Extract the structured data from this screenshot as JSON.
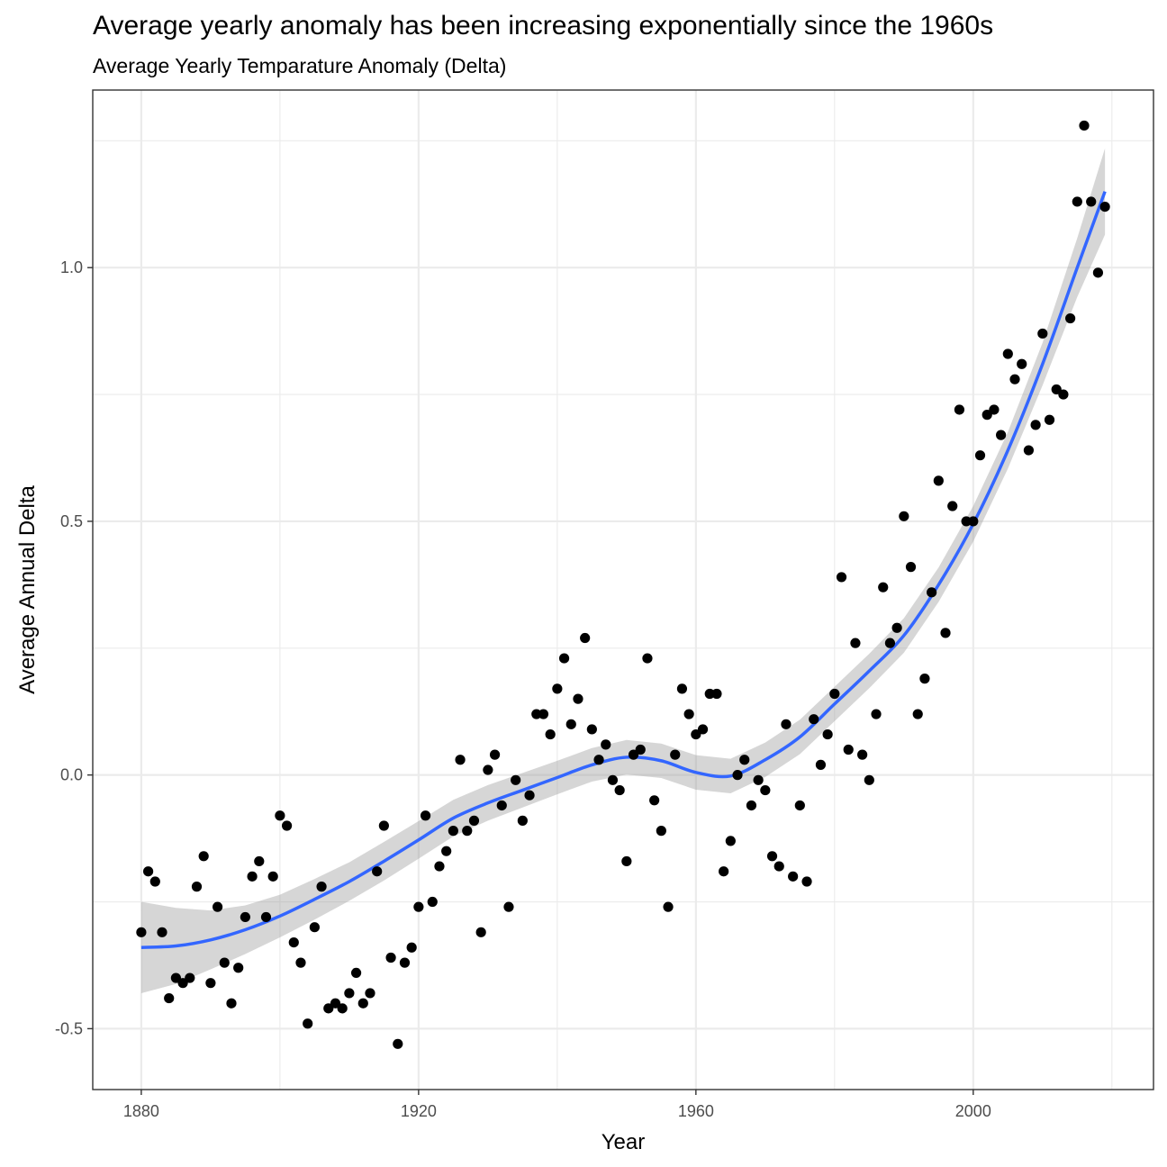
{
  "chart_data": {
    "type": "scatter",
    "title": "Average yearly anomaly has been increasing exponentially since the 1960s",
    "subtitle": "Average Yearly Temparature Anomaly (Delta)",
    "xlabel": "Year",
    "ylabel": "Average Annual Delta",
    "xlim": [
      1873,
      2026
    ],
    "ylim": [
      -0.62,
      1.35
    ],
    "x_ticks": [
      1880,
      1920,
      1960,
      2000
    ],
    "x_tick_labels": [
      "1880",
      "1920",
      "1960",
      "2000"
    ],
    "y_ticks": [
      -0.5,
      0.0,
      0.5,
      1.0
    ],
    "y_tick_labels": [
      "-0.5",
      "0.0",
      "0.5",
      "1.0"
    ],
    "grid": true,
    "colors": {
      "points": "#000000",
      "smooth": "#3366ff",
      "ribbon": "#999999",
      "grid": "#ebebeb",
      "border": "#333333"
    },
    "points": {
      "x": [
        1880,
        1881,
        1882,
        1883,
        1884,
        1885,
        1886,
        1887,
        1888,
        1889,
        1890,
        1891,
        1892,
        1893,
        1894,
        1895,
        1896,
        1897,
        1898,
        1899,
        1900,
        1901,
        1902,
        1903,
        1904,
        1905,
        1906,
        1907,
        1908,
        1909,
        1910,
        1911,
        1912,
        1913,
        1914,
        1915,
        1916,
        1917,
        1918,
        1919,
        1920,
        1921,
        1922,
        1923,
        1924,
        1925,
        1926,
        1927,
        1928,
        1929,
        1930,
        1931,
        1932,
        1933,
        1934,
        1935,
        1936,
        1937,
        1938,
        1939,
        1940,
        1941,
        1942,
        1943,
        1944,
        1945,
        1946,
        1947,
        1948,
        1949,
        1950,
        1951,
        1952,
        1953,
        1954,
        1955,
        1956,
        1957,
        1958,
        1959,
        1960,
        1961,
        1962,
        1963,
        1964,
        1965,
        1966,
        1967,
        1968,
        1969,
        1970,
        1971,
        1972,
        1973,
        1974,
        1975,
        1976,
        1977,
        1978,
        1979,
        1980,
        1981,
        1982,
        1983,
        1984,
        1985,
        1986,
        1987,
        1988,
        1989,
        1990,
        1991,
        1992,
        1993,
        1994,
        1995,
        1996,
        1997,
        1998,
        1999,
        2000,
        2001,
        2002,
        2003,
        2004,
        2005,
        2006,
        2007,
        2008,
        2009,
        2010,
        2011,
        2012,
        2013,
        2014,
        2015,
        2016,
        2017,
        2018,
        2019
      ],
      "y": [
        -0.31,
        -0.19,
        -0.21,
        -0.31,
        -0.44,
        -0.4,
        -0.41,
        -0.4,
        -0.22,
        -0.16,
        -0.41,
        -0.26,
        -0.37,
        -0.45,
        -0.38,
        -0.28,
        -0.2,
        -0.17,
        -0.28,
        -0.2,
        -0.08,
        -0.1,
        -0.33,
        -0.37,
        -0.49,
        -0.3,
        -0.22,
        -0.46,
        -0.45,
        -0.46,
        -0.43,
        -0.39,
        -0.45,
        -0.43,
        -0.19,
        -0.1,
        -0.36,
        -0.53,
        -0.37,
        -0.34,
        -0.26,
        -0.08,
        -0.25,
        -0.18,
        -0.15,
        -0.11,
        0.03,
        -0.11,
        -0.09,
        -0.31,
        0.01,
        0.04,
        -0.06,
        -0.26,
        -0.01,
        -0.09,
        -0.04,
        0.12,
        0.12,
        0.08,
        0.17,
        0.23,
        0.1,
        0.15,
        0.27,
        0.09,
        0.03,
        0.06,
        -0.01,
        -0.03,
        -0.17,
        0.04,
        0.05,
        0.23,
        -0.05,
        -0.11,
        -0.26,
        0.04,
        0.17,
        0.12,
        0.08,
        0.09,
        0.16,
        0.16,
        -0.19,
        -0.13,
        0.0,
        0.03,
        -0.06,
        -0.01,
        -0.03,
        -0.16,
        -0.18,
        0.1,
        -0.2,
        -0.06,
        -0.21,
        0.11,
        0.02,
        0.08,
        0.16,
        0.39,
        0.05,
        0.26,
        0.04,
        -0.01,
        0.12,
        0.37,
        0.26,
        0.29,
        0.51,
        0.41,
        0.12,
        0.19,
        0.36,
        0.58,
        0.28,
        0.53,
        0.72,
        0.5,
        0.5,
        0.63,
        0.71,
        0.72,
        0.67,
        0.83,
        0.78,
        0.81,
        0.64,
        0.69,
        0.87,
        0.7,
        0.76,
        0.75,
        0.9,
        1.13,
        1.28,
        1.13,
        0.99,
        1.12
      ]
    },
    "smooth": {
      "method": "loess",
      "x": [
        1880,
        1885,
        1890,
        1895,
        1900,
        1905,
        1910,
        1915,
        1920,
        1925,
        1930,
        1935,
        1940,
        1945,
        1950,
        1955,
        1960,
        1965,
        1970,
        1975,
        1980,
        1985,
        1990,
        1995,
        2000,
        2005,
        2010,
        2015,
        2019
      ],
      "y": [
        -0.34,
        -0.337,
        -0.325,
        -0.305,
        -0.278,
        -0.245,
        -0.21,
        -0.17,
        -0.128,
        -0.085,
        -0.055,
        -0.03,
        -0.005,
        0.02,
        0.035,
        0.028,
        0.005,
        -0.002,
        0.03,
        0.075,
        0.14,
        0.205,
        0.275,
        0.375,
        0.495,
        0.64,
        0.81,
        1.0,
        1.15
      ],
      "se_band": [
        0.09,
        0.075,
        0.058,
        0.048,
        0.042,
        0.04,
        0.038,
        0.038,
        0.037,
        0.036,
        0.035,
        0.034,
        0.033,
        0.033,
        0.034,
        0.034,
        0.034,
        0.034,
        0.034,
        0.034,
        0.034,
        0.034,
        0.034,
        0.034,
        0.035,
        0.036,
        0.042,
        0.058,
        0.085
      ]
    }
  }
}
